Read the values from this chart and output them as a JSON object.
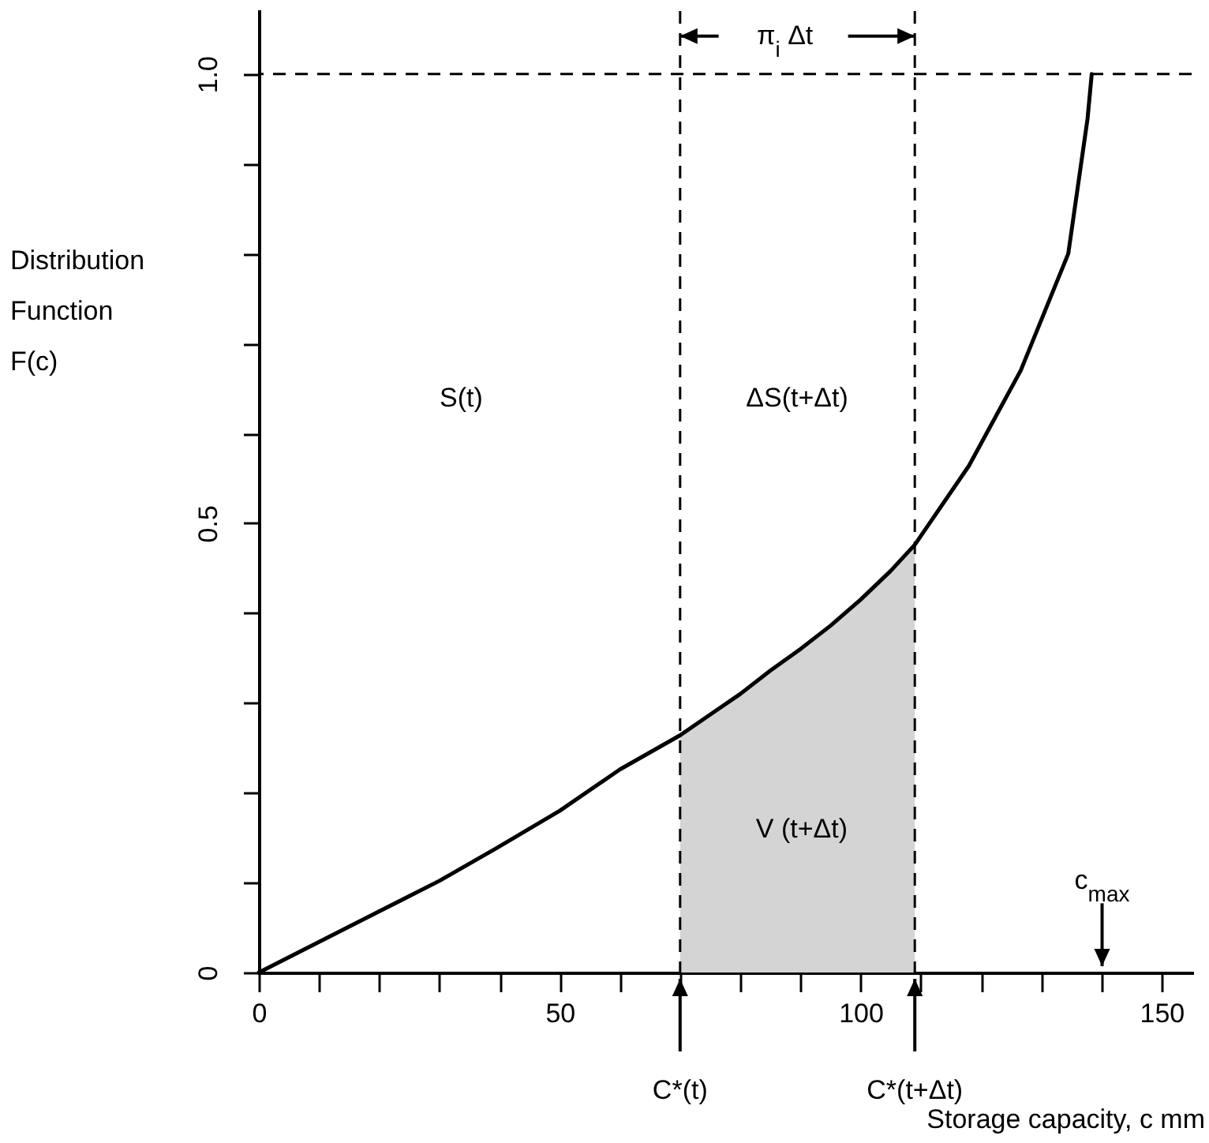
{
  "chart_data": {
    "type": "line",
    "xlabel": "Storage capacity, c  mm",
    "ylabel": "Distribution Function F(c)",
    "xlim": [
      0,
      155
    ],
    "ylim": [
      0,
      1.07
    ],
    "xticks": [
      0,
      {
        "value": 10,
        "label": null
      },
      {
        "value": 20,
        "label": null
      },
      {
        "value": 30,
        "label": null
      },
      {
        "value": 40,
        "label": null
      },
      50,
      {
        "value": 60,
        "label": null
      },
      {
        "value": 70,
        "label": null
      },
      {
        "value": 80,
        "label": null
      },
      {
        "value": 90,
        "label": null
      },
      100,
      {
        "value": 110,
        "label": null
      },
      {
        "value": 120,
        "label": null
      },
      {
        "value": 130,
        "label": null
      },
      {
        "value": 140,
        "label": null
      },
      150
    ],
    "yticks": [
      0,
      {
        "value": 0.1,
        "label": null
      },
      {
        "value": 0.2,
        "label": null
      },
      {
        "value": 0.3,
        "label": null
      },
      {
        "value": 0.4,
        "label": null
      },
      0.5,
      {
        "value": 0.6,
        "label": null
      },
      {
        "value": 0.7,
        "label": null
      },
      {
        "value": 0.8,
        "label": null
      },
      {
        "value": 0.9,
        "label": null
      },
      {
        "value": 1,
        "label": "1.0"
      }
    ],
    "grid": false,
    "marker": "none",
    "series": [
      {
        "type": "area",
        "color": "#d4d4d4",
        "x": [
          70,
          75,
          80,
          85,
          90,
          95,
          100,
          105,
          109
        ],
        "values": [
          0.264,
          0.287,
          0.31,
          0.336,
          0.36,
          0.386,
          0.415,
          0.447,
          0.476
        ]
      },
      {
        "type": "line",
        "color": "#000000",
        "line_style": "solid",
        "x": [
          0,
          20,
          30,
          39.4,
          50,
          60,
          70,
          75,
          80,
          85,
          90,
          95,
          100,
          105,
          109,
          118,
          126.6,
          134.5,
          137.7,
          138.4
        ],
        "values": [
          0,
          0.068,
          0.102,
          0.138,
          0.18,
          0.226,
          0.264,
          0.287,
          0.31,
          0.336,
          0.36,
          0.386,
          0.415,
          0.447,
          0.476,
          0.564,
          0.67,
          0.8,
          0.95,
          1.0
        ]
      }
    ],
    "ref_lines": [
      {
        "axis": "x",
        "value": 70,
        "label": "C*(t)",
        "line_style": "dashed",
        "color": "#000000"
      },
      {
        "axis": "x",
        "value": 109,
        "label": "C*(t+Δt)",
        "line_style": "dashed",
        "color": "#000000"
      },
      {
        "axis": "y",
        "value": 1,
        "line_style": "dashed",
        "color": "#000000"
      }
    ],
    "annotations": [
      "S(t)",
      "ΔS(t+Δt)",
      "V (t+Δt)",
      "c$_{max}$",
      "π$_{i}$ Δt"
    ]
  }
}
